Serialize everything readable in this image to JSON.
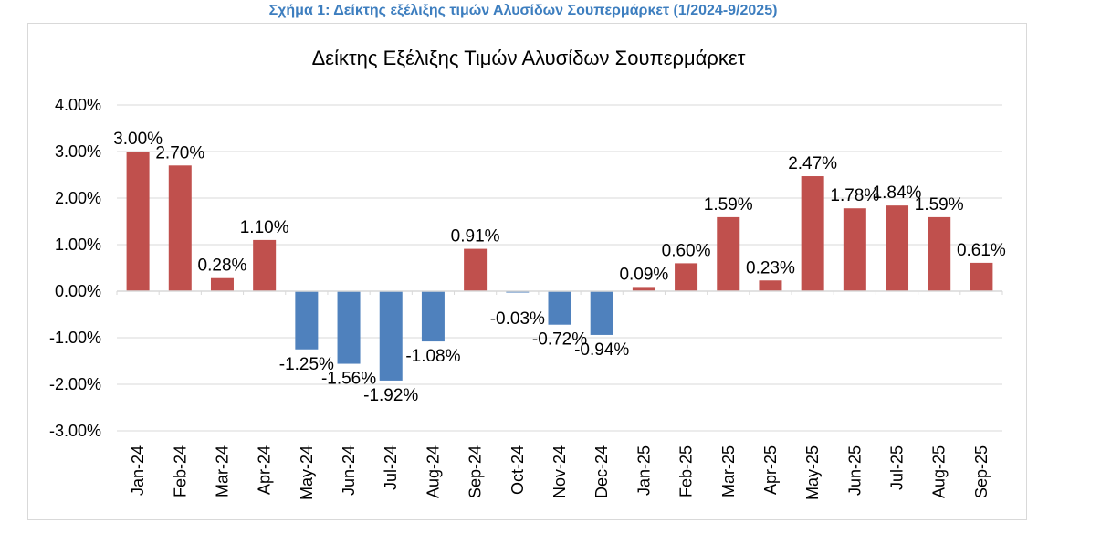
{
  "caption": "Σχήμα 1: Δείκτης εξέλιξης τιμών Αλυσίδων Σουπερμάρκετ (1/2024-9/2025)",
  "chart_data": {
    "type": "bar",
    "title": "Δείκτης Εξέλιξης Τιμών Αλυσίδων Σουπερμάρκετ",
    "xlabel": "",
    "ylabel": "",
    "ylim": [
      -3,
      4
    ],
    "yticks": [
      4,
      3,
      2,
      1,
      0,
      -1,
      -2,
      -3
    ],
    "ytick_labels": [
      "4.00%",
      "3.00%",
      "2.00%",
      "1.00%",
      "0.00%",
      "-1.00%",
      "-2.00%",
      "-3.00%"
    ],
    "grid": true,
    "categories": [
      "Jan-24",
      "Feb-24",
      "Mar-24",
      "Apr-24",
      "May-24",
      "Jun-24",
      "Jul-24",
      "Aug-24",
      "Sep-24",
      "Oct-24",
      "Nov-24",
      "Dec-24",
      "Jan-25",
      "Feb-25",
      "Mar-25",
      "Apr-25",
      "May-25",
      "Jun-25",
      "Jul-25",
      "Aug-25",
      "Sep-25"
    ],
    "values": [
      3.0,
      2.7,
      0.28,
      1.1,
      -1.25,
      -1.56,
      -1.92,
      -1.08,
      0.91,
      -0.03,
      -0.72,
      -0.94,
      0.09,
      0.6,
      1.59,
      0.23,
      2.47,
      1.78,
      1.84,
      1.59,
      0.61
    ],
    "data_labels": [
      "3.00%",
      "2.70%",
      "0.28%",
      "1.10%",
      "-1.25%",
      "-1.56%",
      "-1.92%",
      "-1.08%",
      "0.91%",
      "-0.03%",
      "-0.72%",
      "-0.94%",
      "0.09%",
      "0.60%",
      "1.59%",
      "0.23%",
      "2.47%",
      "1.78%",
      "1.84%",
      "1.59%",
      "0.61%"
    ],
    "colors": {
      "positive": "#c0504d",
      "negative": "#4f81bd",
      "grid": "#d9d9d9"
    }
  }
}
